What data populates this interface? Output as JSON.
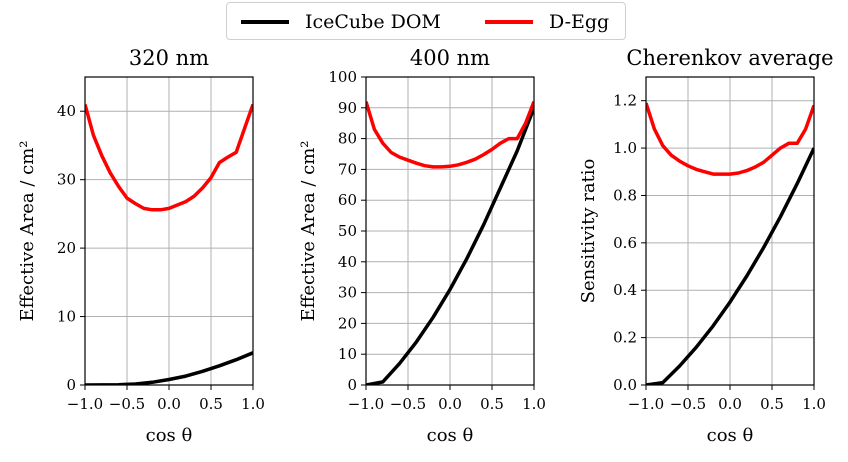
{
  "legend": {
    "entries": [
      {
        "label": "IceCube DOM",
        "color": "#000000"
      },
      {
        "label": "D-Egg",
        "color": "#ff0000"
      }
    ]
  },
  "chart_data": [
    {
      "type": "line",
      "title": "320 nm",
      "xlabel": "cos θ",
      "ylabel": "Effective Area / cm²",
      "xlim": [
        -1.0,
        1.0
      ],
      "ylim": [
        0,
        45
      ],
      "xticks": [
        "−1.0",
        "−0.5",
        "0.0",
        "0.5",
        "1.0"
      ],
      "yticks": [
        "0",
        "10",
        "20",
        "30",
        "40"
      ],
      "ytick_values": [
        0,
        10,
        20,
        30,
        40
      ],
      "grid": true,
      "series": [
        {
          "name": "IceCube DOM",
          "color": "#000000",
          "x": [
            -1.0,
            -0.8,
            -0.6,
            -0.4,
            -0.2,
            0.0,
            0.2,
            0.4,
            0.6,
            0.8,
            1.0
          ],
          "y": [
            0.0,
            0.02,
            0.05,
            0.15,
            0.4,
            0.8,
            1.3,
            2.0,
            2.8,
            3.7,
            4.7
          ]
        },
        {
          "name": "D-Egg",
          "color": "#ff0000",
          "x": [
            -1.0,
            -0.9,
            -0.8,
            -0.7,
            -0.6,
            -0.5,
            -0.4,
            -0.3,
            -0.2,
            -0.1,
            0.0,
            0.1,
            0.2,
            0.3,
            0.4,
            0.5,
            0.6,
            0.7,
            0.8,
            0.9,
            1.0
          ],
          "y": [
            41.0,
            36.5,
            33.5,
            31.0,
            29.0,
            27.3,
            26.5,
            25.8,
            25.6,
            25.6,
            25.8,
            26.3,
            26.8,
            27.6,
            28.8,
            30.3,
            32.5,
            33.3,
            34.0,
            37.5,
            41.0
          ]
        }
      ]
    },
    {
      "type": "line",
      "title": "400 nm",
      "xlabel": "cos θ",
      "ylabel": "Effective Area / cm²",
      "xlim": [
        -1.0,
        1.0
      ],
      "ylim": [
        0,
        100
      ],
      "xticks": [
        "−1.0",
        "−0.5",
        "0.0",
        "0.5",
        "1.0"
      ],
      "yticks": [
        "0",
        "10",
        "20",
        "30",
        "40",
        "50",
        "60",
        "70",
        "80",
        "90",
        "100"
      ],
      "ytick_values": [
        0,
        10,
        20,
        30,
        40,
        50,
        60,
        70,
        80,
        90,
        100
      ],
      "grid": true,
      "series": [
        {
          "name": "IceCube DOM",
          "color": "#000000",
          "x": [
            -1.0,
            -0.8,
            -0.6,
            -0.4,
            -0.2,
            0.0,
            0.2,
            0.4,
            0.6,
            0.8,
            1.0
          ],
          "y": [
            0.0,
            1.0,
            7.0,
            14.0,
            22.0,
            31.0,
            41.0,
            52.0,
            64.0,
            76.0,
            90.0
          ]
        },
        {
          "name": "D-Egg",
          "color": "#ff0000",
          "x": [
            -1.0,
            -0.9,
            -0.8,
            -0.7,
            -0.6,
            -0.5,
            -0.4,
            -0.3,
            -0.2,
            -0.1,
            0.0,
            0.1,
            0.2,
            0.3,
            0.4,
            0.5,
            0.6,
            0.7,
            0.8,
            0.9,
            1.0
          ],
          "y": [
            92.0,
            83.0,
            78.5,
            75.5,
            74.0,
            73.0,
            72.0,
            71.2,
            70.8,
            70.8,
            71.0,
            71.5,
            72.3,
            73.3,
            74.8,
            76.5,
            78.5,
            80.0,
            80.0,
            85.0,
            92.0
          ]
        }
      ]
    },
    {
      "type": "line",
      "title": "Cherenkov average",
      "xlabel": "cos θ",
      "ylabel": "Sensitivity ratio",
      "xlim": [
        -1.0,
        1.0
      ],
      "ylim": [
        0,
        1.3
      ],
      "xticks": [
        "−1.0",
        "−0.5",
        "0.0",
        "0.5",
        "1.0"
      ],
      "yticks": [
        "0.0",
        "0.2",
        "0.4",
        "0.6",
        "0.8",
        "1.0",
        "1.2"
      ],
      "ytick_values": [
        0,
        0.2,
        0.4,
        0.6,
        0.8,
        1.0,
        1.2
      ],
      "grid": true,
      "series": [
        {
          "name": "IceCube DOM",
          "color": "#000000",
          "x": [
            -1.0,
            -0.8,
            -0.6,
            -0.4,
            -0.2,
            0.0,
            0.2,
            0.4,
            0.6,
            0.8,
            1.0
          ],
          "y": [
            0.0,
            0.01,
            0.08,
            0.16,
            0.25,
            0.35,
            0.46,
            0.58,
            0.71,
            0.85,
            1.0
          ]
        },
        {
          "name": "D-Egg",
          "color": "#ff0000",
          "x": [
            -1.0,
            -0.9,
            -0.8,
            -0.7,
            -0.6,
            -0.5,
            -0.4,
            -0.3,
            -0.2,
            -0.1,
            0.0,
            0.1,
            0.2,
            0.3,
            0.4,
            0.5,
            0.6,
            0.7,
            0.8,
            0.9,
            1.0
          ],
          "y": [
            1.19,
            1.08,
            1.01,
            0.97,
            0.945,
            0.925,
            0.91,
            0.9,
            0.89,
            0.89,
            0.89,
            0.895,
            0.905,
            0.92,
            0.94,
            0.97,
            1.0,
            1.02,
            1.02,
            1.08,
            1.18
          ]
        }
      ]
    }
  ]
}
